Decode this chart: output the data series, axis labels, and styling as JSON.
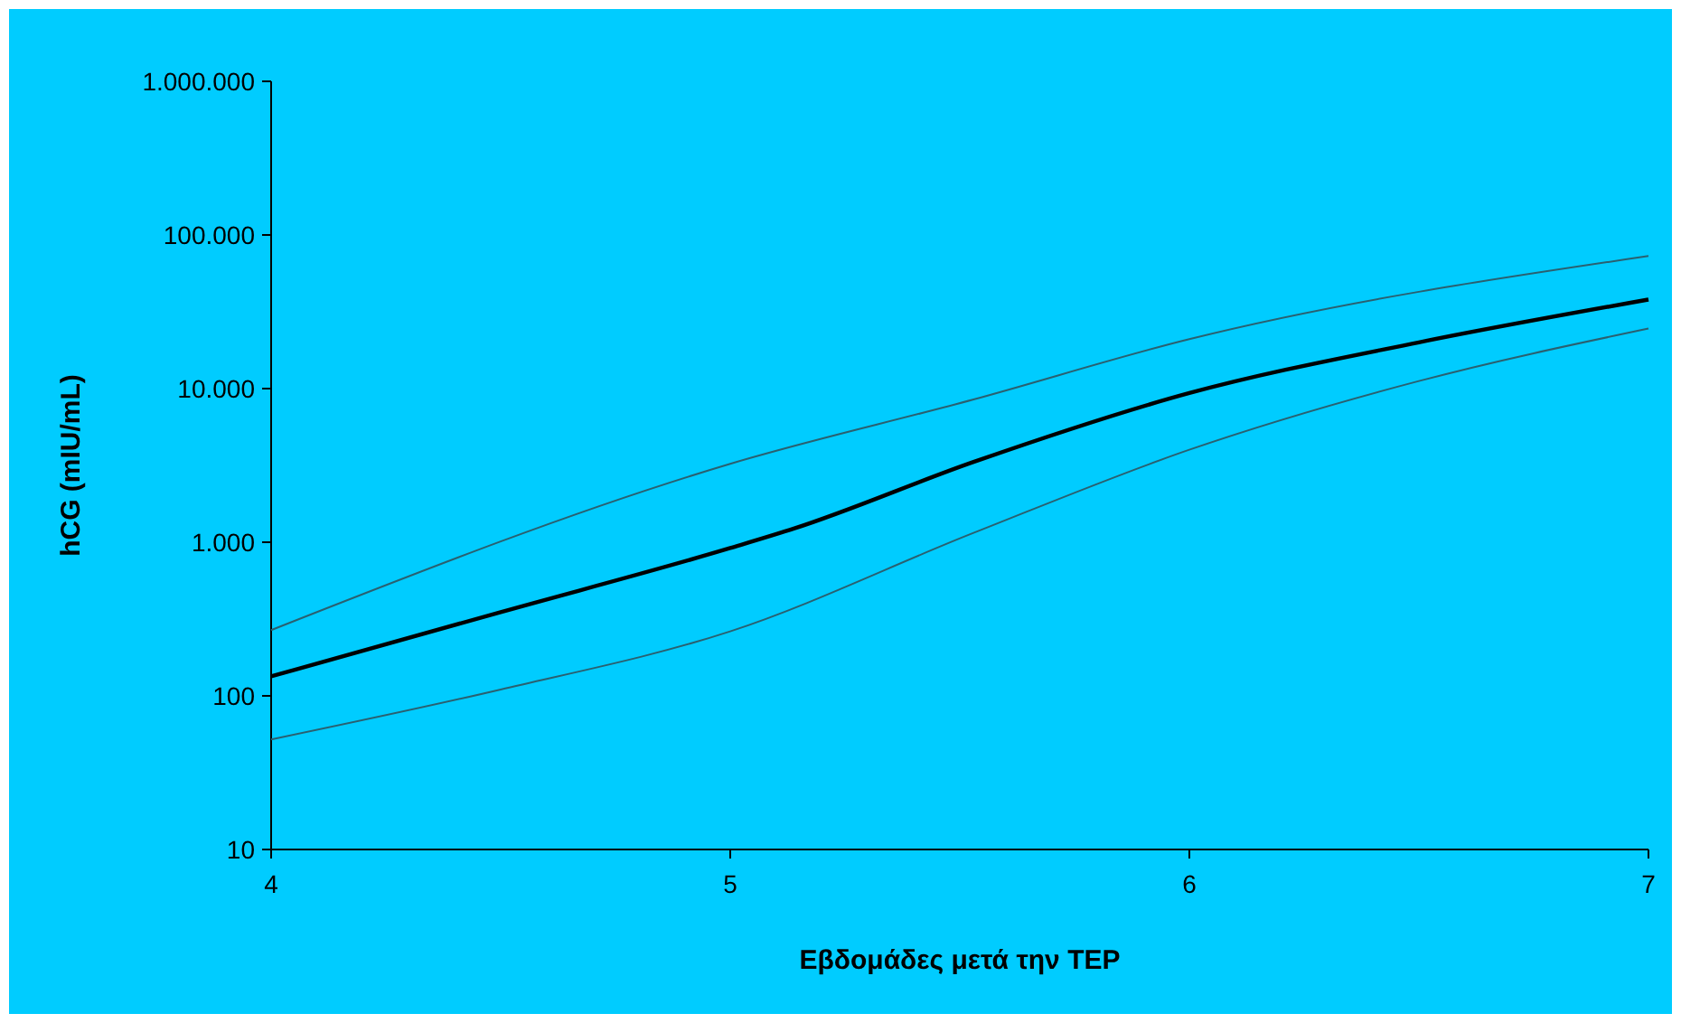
{
  "chart_data": {
    "type": "line",
    "xlabel": "Εβδομάδες μετά την ΤΕΡ",
    "ylabel": "hCG (mIU/mL)",
    "log": "y",
    "grid": false,
    "marker": "none",
    "line_style": "solid",
    "xlim": [
      4,
      7
    ],
    "xticks": [
      4,
      5,
      6,
      7
    ],
    "ylim": [
      10,
      1000000
    ],
    "yticks": [
      10,
      100,
      {
        "value": 1000,
        "label": "1.000"
      },
      {
        "value": 10000,
        "label": "10.000"
      },
      {
        "value": 100000,
        "label": "100.000"
      },
      {
        "value": 1000000,
        "label": "1.000.000"
      }
    ],
    "series": [
      {
        "color": "#2a6070",
        "x": [
          4,
          5,
          5.53,
          6,
          7
        ],
        "values": [
          268,
          3240,
          8500,
          21000,
          72900
        ]
      },
      {
        "color": "#000000",
        "x": [
          4,
          4.5,
          5,
          5.14,
          5.53,
          6,
          6.5,
          7
        ],
        "values": [
          134,
          351,
          916,
          1230,
          3330,
          9350,
          20000,
          38000
        ]
      },
      {
        "color": "#2a6070",
        "x": [
          4,
          4.5,
          5,
          5.53,
          6,
          6.5,
          7
        ],
        "values": [
          52,
          110,
          263,
          1150,
          4000,
          11200,
          24600
        ]
      }
    ]
  }
}
